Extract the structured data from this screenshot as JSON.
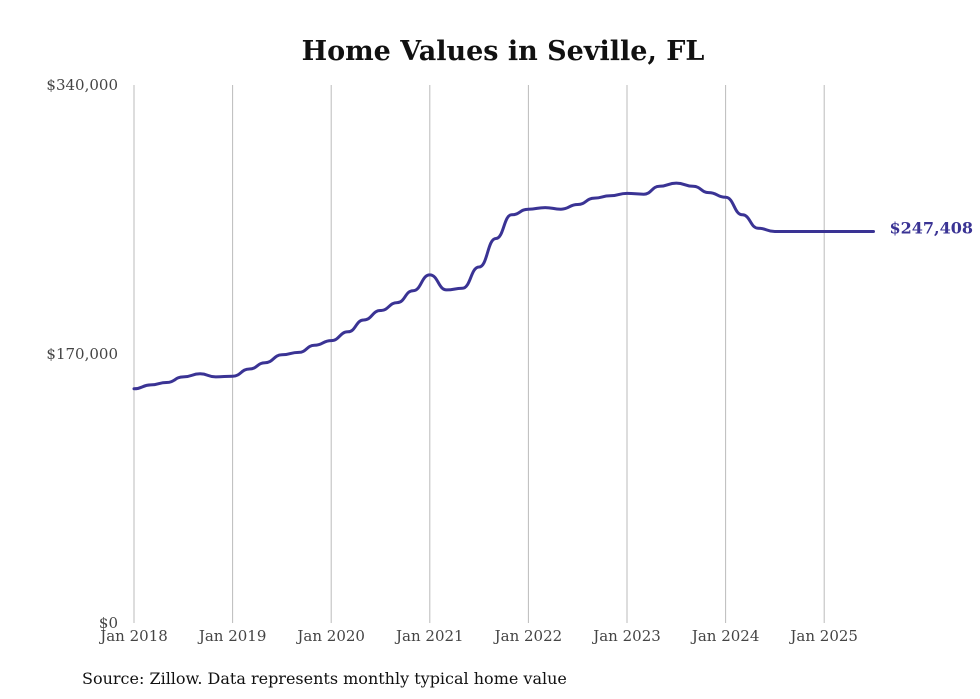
{
  "chart_data": {
    "type": "line",
    "title": "Home Values in Seville, FL",
    "xlabel": "",
    "ylabel": "",
    "source": "Source: Zillow. Data represents monthly typical home value",
    "ylim": [
      0,
      340000
    ],
    "yticks": [
      {
        "value": 0,
        "label": "$0"
      },
      {
        "value": 170000,
        "label": "$170,000"
      },
      {
        "value": 340000,
        "label": "$340,000"
      }
    ],
    "xticks": [
      {
        "value": 2018,
        "label": "Jan 2018"
      },
      {
        "value": 2019,
        "label": "Jan 2019"
      },
      {
        "value": 2020,
        "label": "Jan 2020"
      },
      {
        "value": 2021,
        "label": "Jan 2021"
      },
      {
        "value": 2022,
        "label": "Jan 2022"
      },
      {
        "value": 2023,
        "label": "Jan 2023"
      },
      {
        "value": 2024,
        "label": "Jan 2024"
      },
      {
        "value": 2025,
        "label": "Jan 2025"
      }
    ],
    "xlim": [
      2018,
      2025.5
    ],
    "grid": "vertical",
    "end_label": "$247,408",
    "series": [
      {
        "name": "Typical home value",
        "color": "#3a3394",
        "x": [
          2018.0,
          2018.17,
          2018.33,
          2018.5,
          2018.67,
          2018.83,
          2019.0,
          2019.17,
          2019.33,
          2019.5,
          2019.67,
          2019.83,
          2020.0,
          2020.17,
          2020.33,
          2020.5,
          2020.67,
          2020.83,
          2021.0,
          2021.17,
          2021.33,
          2021.5,
          2021.67,
          2021.83,
          2022.0,
          2022.17,
          2022.33,
          2022.5,
          2022.67,
          2022.83,
          2023.0,
          2023.17,
          2023.33,
          2023.5,
          2023.67,
          2023.83,
          2024.0,
          2024.17,
          2024.33,
          2024.5,
          2024.67,
          2024.83,
          2025.0,
          2025.17,
          2025.33,
          2025.5
        ],
        "values": [
          148000,
          150500,
          152000,
          155500,
          157500,
          155500,
          156000,
          160500,
          164500,
          169500,
          171000,
          175500,
          178500,
          184000,
          191500,
          197500,
          202500,
          210000,
          220000,
          210500,
          211500,
          225000,
          243000,
          258000,
          261500,
          262500,
          261500,
          264500,
          268500,
          270000,
          271500,
          271000,
          276000,
          278000,
          276000,
          272000,
          269000,
          258000,
          249500,
          247408,
          247408,
          247408,
          247408,
          247408,
          247408,
          247408
        ]
      }
    ]
  }
}
